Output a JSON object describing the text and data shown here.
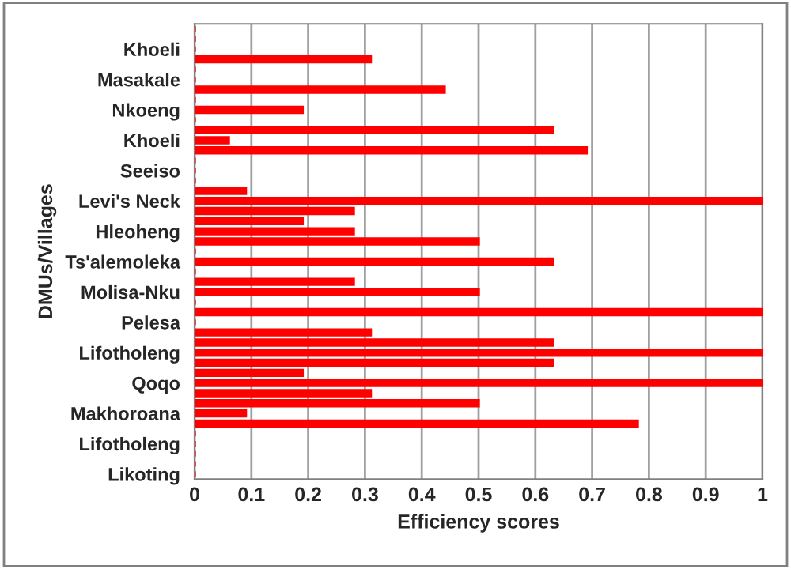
{
  "chart_data": {
    "type": "bar",
    "orientation": "horizontal",
    "xlabel": "Efficiency scores",
    "ylabel": "DMUs/Villages",
    "categories": [
      null,
      null,
      "Khoeli",
      null,
      null,
      "Masakale",
      null,
      null,
      "Nkoeng",
      null,
      null,
      "Khoeli",
      null,
      null,
      "Seeiso",
      null,
      null,
      "Levi's Neck",
      null,
      null,
      "Hleoheng",
      null,
      null,
      "Ts'alemoleka",
      null,
      null,
      "Molisa-Nku",
      null,
      null,
      "Pelesa",
      null,
      null,
      "Lifotholeng",
      null,
      null,
      "Qoqo",
      null,
      null,
      "Makhoroana",
      null,
      null,
      "Lifotholeng",
      null,
      null,
      "Likoting"
    ],
    "values": [
      0,
      0,
      0,
      0.31,
      0,
      0,
      0.44,
      0,
      0.19,
      0,
      0.63,
      0.06,
      0.69,
      0,
      0,
      0,
      0.09,
      1,
      0.28,
      0.19,
      0.28,
      0.5,
      0,
      0.63,
      0,
      0.28,
      0.5,
      0,
      1,
      0,
      0.31,
      0.63,
      1,
      0.63,
      0.19,
      1,
      0.31,
      0.5,
      0.09,
      0.78,
      0,
      0,
      0,
      0,
      0
    ],
    "color": "#ff0000",
    "xlim": [
      0,
      1
    ],
    "xticks": [
      0,
      0.1,
      0.2,
      0.3,
      0.4,
      0.5,
      0.6,
      0.7,
      0.8,
      0.9,
      1
    ],
    "grid": "x"
  }
}
